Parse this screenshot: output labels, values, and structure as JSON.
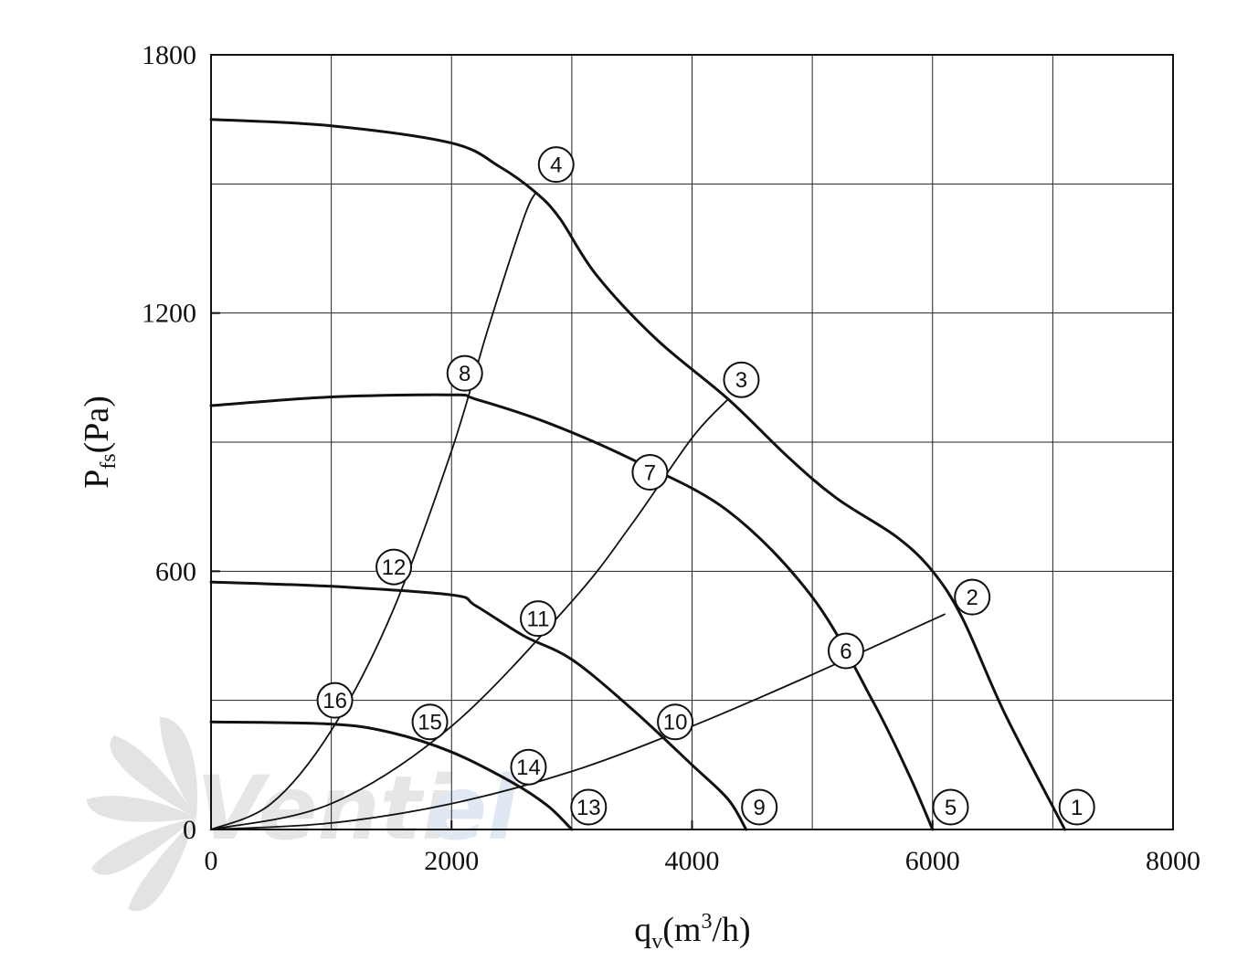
{
  "chart_data": {
    "type": "line",
    "title": "",
    "ylabel": {
      "main": "P",
      "sub": "fs",
      "rest": "(Pa)"
    },
    "xlabel": {
      "pre": "q",
      "sub": "v",
      "mid": "(m",
      "sup": "3",
      "post": "/h)"
    },
    "xlim": [
      0,
      8000
    ],
    "ylim": [
      0,
      1800
    ],
    "x_ticks": [
      0,
      2000,
      4000,
      6000,
      8000
    ],
    "x_tick_labels": [
      "0",
      "2000",
      "4000",
      "6000",
      "8000"
    ],
    "y_ticks": [
      0,
      600,
      1200,
      1800
    ],
    "y_tick_labels": [
      "0",
      "600",
      "1200",
      "1800"
    ],
    "x_grid": [
      1000,
      2000,
      3000,
      4000,
      5000,
      6000,
      7000
    ],
    "y_grid": [
      300,
      600,
      900,
      1200,
      1500
    ],
    "grid": true,
    "watermark": {
      "text": "Venti",
      "accent": "el"
    },
    "fan_curves": [
      {
        "name": "",
        "weight": "thick",
        "x": [
          0,
          1000,
          2000,
          2400,
          2700,
          2900,
          3200,
          3700,
          4300,
          4800,
          5200,
          5700,
          6000,
          6250,
          6600,
          7100
        ],
        "y": [
          1650,
          1635,
          1595,
          1540,
          1480,
          1420,
          1290,
          1140,
          1000,
          865,
          770,
          680,
          600,
          490,
          270,
          0
        ]
      },
      {
        "name": "",
        "weight": "thick",
        "x": [
          0,
          1000,
          2000,
          2200,
          2800,
          3500,
          4300,
          5000,
          5500,
          5800,
          6000
        ],
        "y": [
          985,
          1005,
          1010,
          1000,
          945,
          860,
          740,
          540,
          300,
          130,
          0
        ]
      },
      {
        "name": "",
        "weight": "thick",
        "x": [
          0,
          1000,
          2000,
          2200,
          2600,
          3000,
          3500,
          4000,
          4300,
          4450
        ],
        "y": [
          575,
          565,
          545,
          520,
          450,
          395,
          280,
          150,
          70,
          0
        ]
      },
      {
        "name": "",
        "weight": "thick",
        "x": [
          0,
          1000,
          1500,
          2000,
          2500,
          2800,
          3000
        ],
        "y": [
          250,
          245,
          225,
          180,
          110,
          55,
          0
        ]
      }
    ],
    "system_curves": [
      {
        "name": "",
        "weight": "thin",
        "x": [
          0,
          500,
          1000,
          1500,
          2000,
          2300,
          2600,
          2700
        ],
        "y": [
          0,
          60,
          230,
          500,
          880,
          1160,
          1420,
          1480
        ]
      },
      {
        "name": "",
        "weight": "thin",
        "x": [
          0,
          1000,
          2000,
          3000,
          3500,
          4000,
          4300
        ],
        "y": [
          0,
          60,
          240,
          530,
          710,
          910,
          1000
        ]
      },
      {
        "name": "",
        "weight": "thin",
        "x": [
          0,
          1000,
          2000,
          3000,
          4000,
          5000,
          6100
        ],
        "y": [
          0,
          15,
          60,
          135,
          240,
          360,
          500
        ]
      }
    ],
    "markers": [
      {
        "label": "1",
        "x": 7200,
        "y": 52
      },
      {
        "label": "2",
        "x": 6330,
        "y": 540
      },
      {
        "label": "3",
        "x": 4410,
        "y": 1045
      },
      {
        "label": "4",
        "x": 2870,
        "y": 1545
      },
      {
        "label": "5",
        "x": 6150,
        "y": 52
      },
      {
        "label": "6",
        "x": 5280,
        "y": 415
      },
      {
        "label": "7",
        "x": 3650,
        "y": 830
      },
      {
        "label": "8",
        "x": 2110,
        "y": 1060
      },
      {
        "label": "9",
        "x": 4560,
        "y": 52
      },
      {
        "label": "10",
        "x": 3860,
        "y": 250
      },
      {
        "label": "11",
        "x": 2720,
        "y": 490
      },
      {
        "label": "12",
        "x": 1520,
        "y": 610
      },
      {
        "label": "13",
        "x": 3140,
        "y": 52
      },
      {
        "label": "14",
        "x": 2640,
        "y": 145
      },
      {
        "label": "15",
        "x": 1820,
        "y": 250
      },
      {
        "label": "16",
        "x": 1030,
        "y": 300
      }
    ]
  }
}
